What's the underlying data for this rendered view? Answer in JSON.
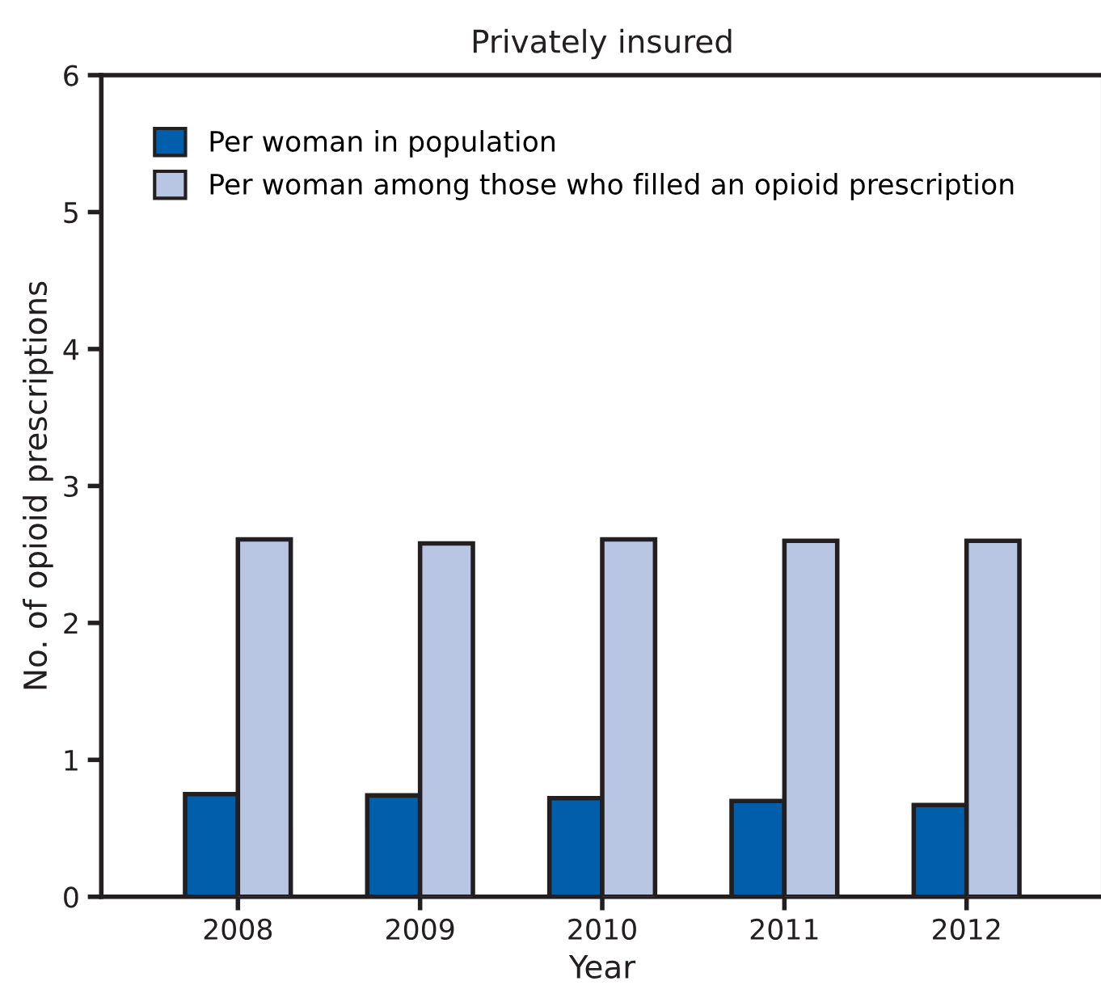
{
  "chart_data": {
    "type": "bar",
    "title": "Privately insured",
    "xlabel": "Year",
    "ylabel": "No. of opioid prescriptions",
    "categories": [
      "2008",
      "2009",
      "2010",
      "2011",
      "2012"
    ],
    "series": [
      {
        "name": "Per woman in population",
        "color": "#005eaa",
        "values": [
          0.75,
          0.74,
          0.72,
          0.7,
          0.67
        ]
      },
      {
        "name": "Per woman among those who filled an opioid prescription",
        "color": "#b8c6e4",
        "values": [
          2.61,
          2.58,
          2.61,
          2.6,
          2.6
        ]
      }
    ],
    "ylim": [
      0,
      6
    ],
    "yticks": [
      0,
      1,
      2,
      3,
      4,
      5,
      6
    ],
    "grid": false,
    "legend": "top left"
  }
}
